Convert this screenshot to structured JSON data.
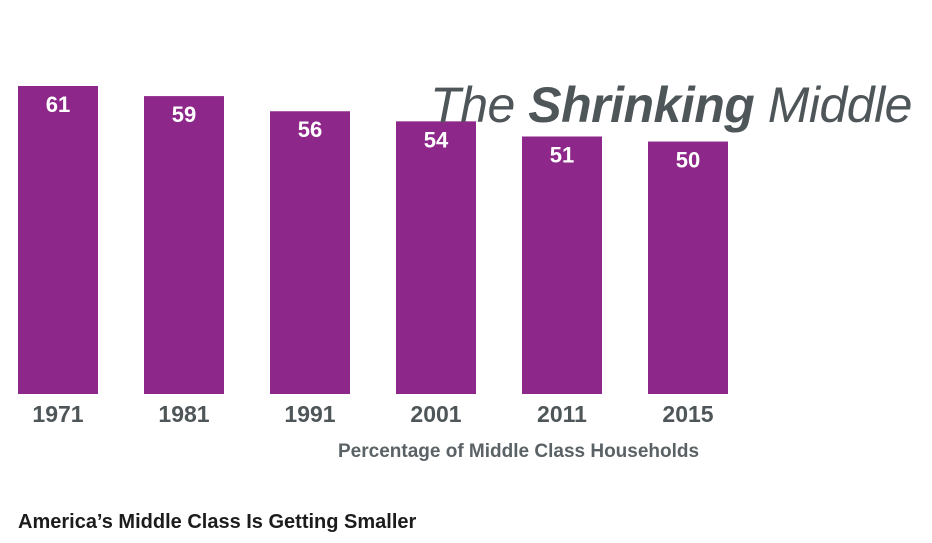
{
  "colors": {
    "bar": "#8e278a",
    "bar_label": "#ffffff",
    "tick_label": "#4f5659",
    "title": "#4f5659"
  },
  "chart_data": {
    "type": "bar",
    "title_parts": {
      "pre": "The ",
      "emphasis": "Shrinking",
      "post": " Middle"
    },
    "xlabel": "Percentage of Middle Class Households",
    "ylabel": "",
    "subtitle": "America’s Middle Class Is Getting Smaller",
    "categories": [
      "1971",
      "1981",
      "1991",
      "2001",
      "2011",
      "2015"
    ],
    "values": [
      61,
      59,
      56,
      54,
      51,
      50
    ],
    "ylim": [
      0,
      61
    ],
    "grid": false,
    "legend": "none"
  }
}
